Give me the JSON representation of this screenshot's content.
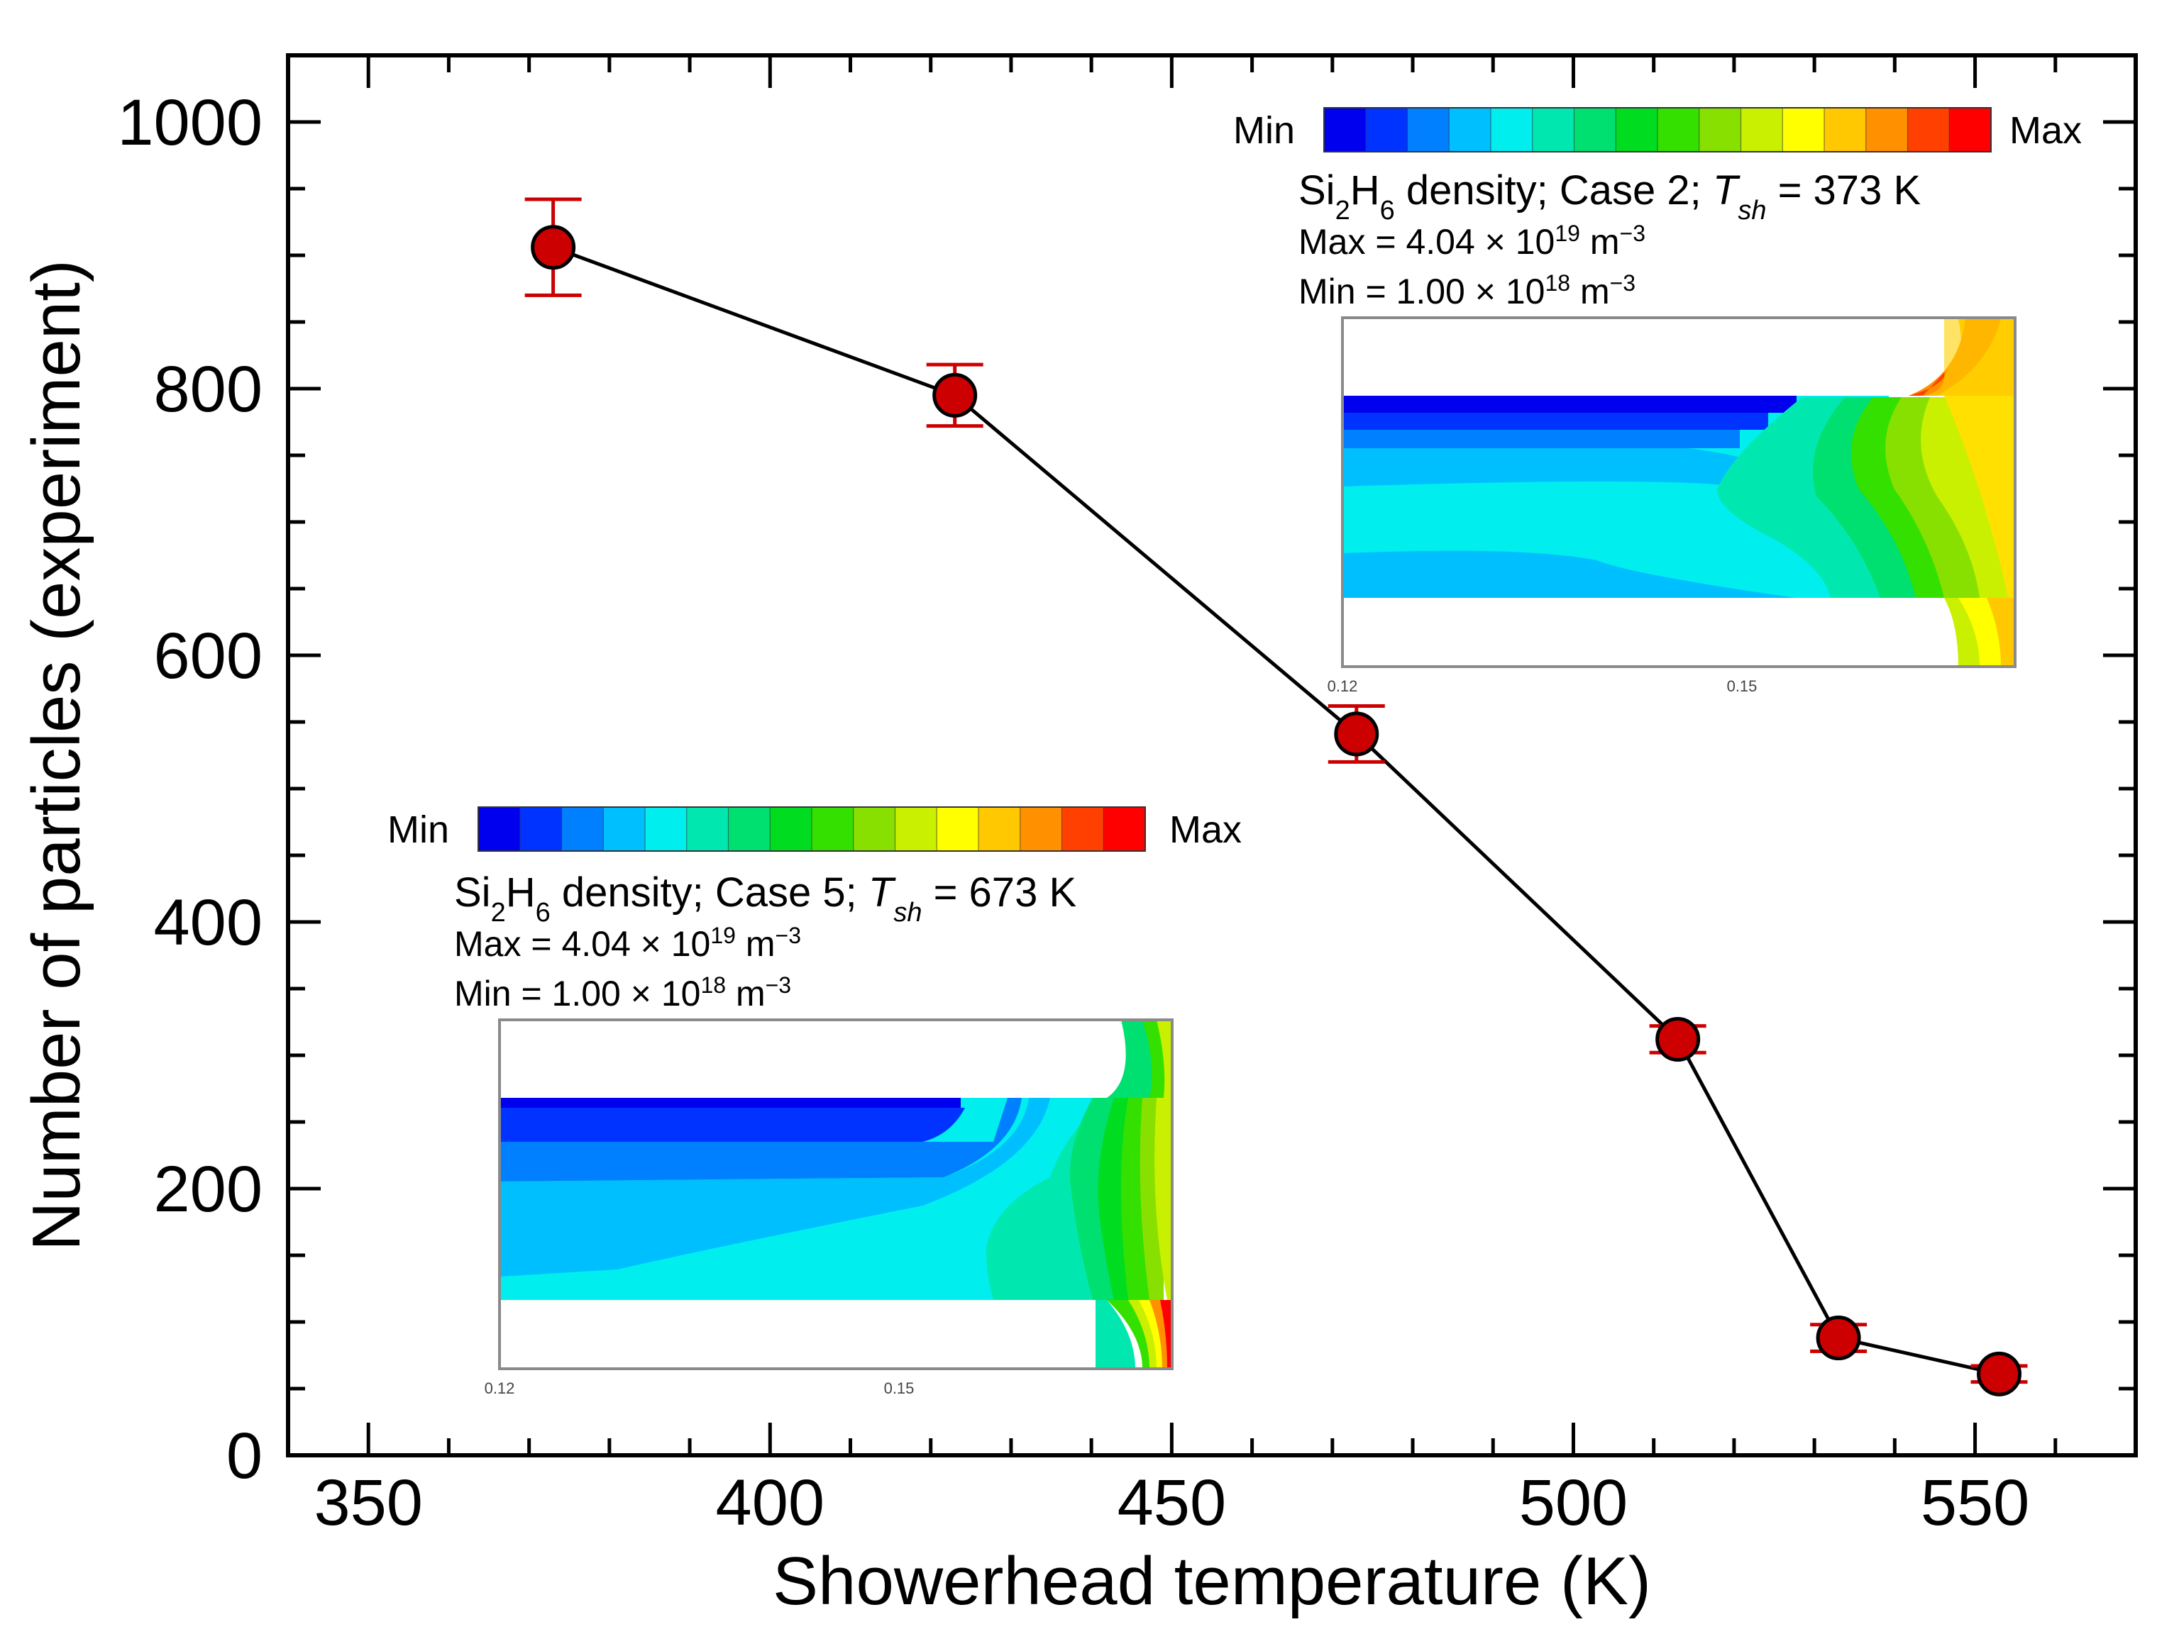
{
  "chart_data": {
    "type": "scatter",
    "title": "",
    "xlabel": "Showerhead temperature (K)",
    "ylabel": "Number of particles (experiment)",
    "xlim": [
      340,
      570
    ],
    "ylim": [
      0,
      1050
    ],
    "xticks": [
      350,
      400,
      450,
      500,
      550
    ],
    "xtick_labels": [
      "350",
      "400",
      "450",
      "500",
      "550"
    ],
    "yticks": [
      0,
      200,
      400,
      600,
      800,
      1000
    ],
    "ytick_labels": [
      "0",
      "200",
      "400",
      "600",
      "800",
      "1000"
    ],
    "x_minor_step": 10,
    "y_minor_step": 50,
    "grid": false,
    "series": [
      {
        "name": "Number of particles",
        "color": "#cc0000",
        "line_color": "#000000",
        "x": [
          373,
          423,
          473,
          513,
          533,
          553
        ],
        "y": [
          906,
          795,
          541,
          312,
          88,
          61
        ],
        "err": [
          36,
          23,
          21,
          10,
          10,
          6
        ]
      }
    ],
    "insets": [
      {
        "id": "case2",
        "colorbar_min_label": "Min",
        "colorbar_max_label": "Max",
        "species": "Si",
        "species_sub1": "2",
        "species_mid": "H",
        "species_sub2": "6",
        "title_rest": " density; Case 2; ",
        "temp_symbol": "T",
        "temp_sub": "sh",
        "temp_value": " = 373 K",
        "max_prefix": "Max = 4.04 × 10",
        "max_exp": "19",
        "max_unit": " m",
        "min_prefix": "Min = 1.00 × 10",
        "min_exp": "18",
        "min_unit": " m",
        "unit_exp": "−3",
        "tick_left": "0.12",
        "tick_mid": "0.15"
      },
      {
        "id": "case5",
        "colorbar_min_label": "Min",
        "colorbar_max_label": "Max",
        "species": "Si",
        "species_sub1": "2",
        "species_mid": "H",
        "species_sub2": "6",
        "title_rest": " density; Case 5; ",
        "temp_symbol": "T",
        "temp_sub": "sh",
        "temp_value": " = 673 K",
        "max_prefix": "Max = 4.04 × 10",
        "max_exp": "19",
        "max_unit": " m",
        "min_prefix": "Min = 1.00 × 10",
        "min_exp": "18",
        "min_unit": " m",
        "unit_exp": "−3",
        "tick_left": "0.12",
        "tick_mid": "0.15"
      }
    ],
    "colormap": [
      "#0000ee",
      "#0033ff",
      "#0080ff",
      "#00bfff",
      "#00eeee",
      "#00e8b0",
      "#00e070",
      "#00dd20",
      "#33e000",
      "#88e000",
      "#c8f000",
      "#ffff00",
      "#ffc800",
      "#ff9000",
      "#ff4000",
      "#ff0000"
    ]
  }
}
